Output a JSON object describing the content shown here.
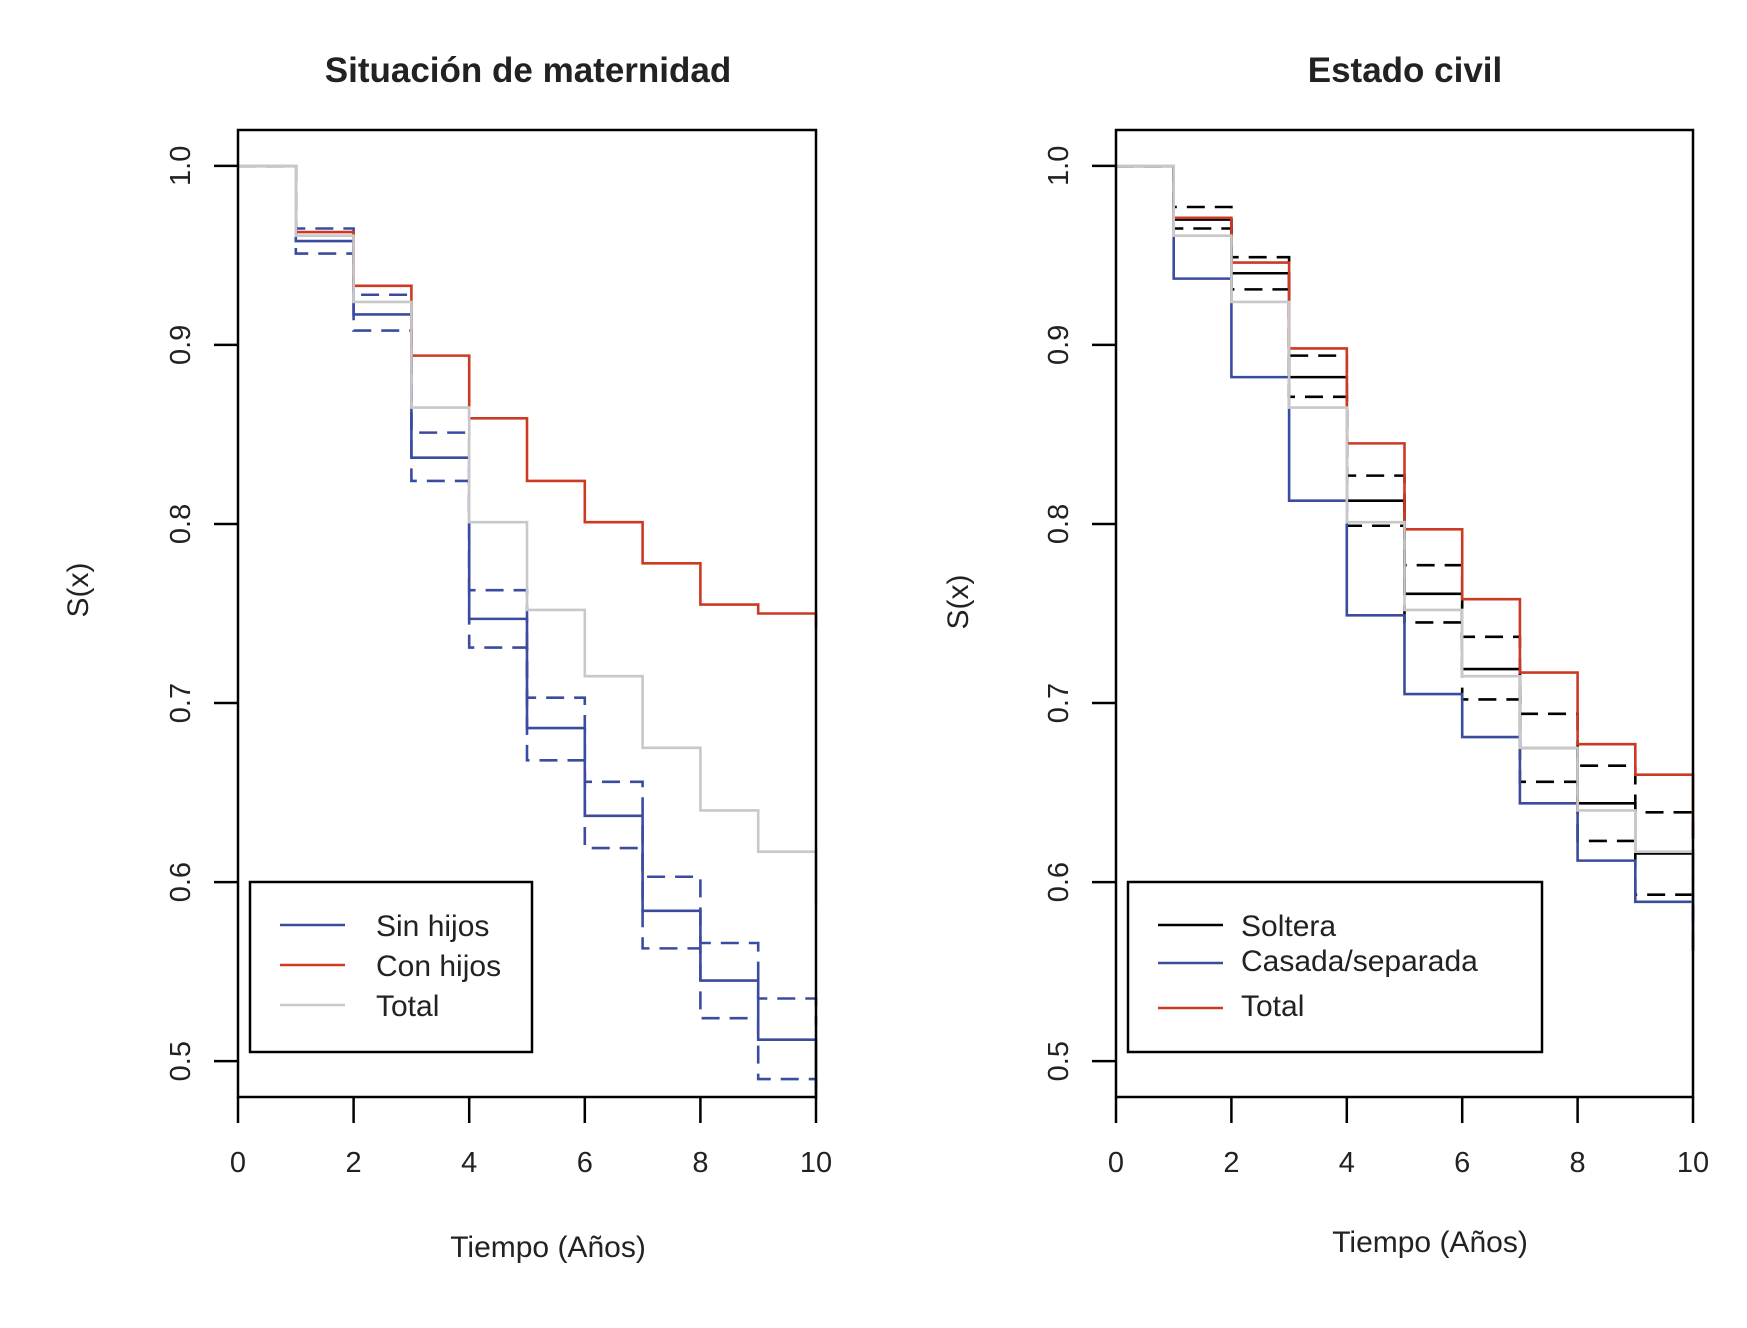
{
  "chart_data": [
    {
      "type": "line",
      "step": true,
      "title": "Situación de maternidad",
      "xlabel": "Tiempo (Años)",
      "ylabel": "S(x)",
      "xlim": [
        0,
        10
      ],
      "ylim": [
        0.48,
        1.02
      ],
      "xticks": [
        "0",
        "2",
        "4",
        "6",
        "8",
        "10"
      ],
      "yticks": [
        "0.5",
        "0.6",
        "0.7",
        "0.8",
        "0.9",
        "1.0"
      ],
      "grid": false,
      "legend_position": "bottom-left",
      "legend": [
        {
          "label": "Sin hijos",
          "color": "#3b4ba0"
        },
        {
          "label": "Con hijos",
          "color": "#cc3a23"
        },
        {
          "label": "Total",
          "color": "#c8c8c8"
        }
      ],
      "series": [
        {
          "legend_index": 0,
          "color": "#3b4ba0",
          "dashed": false,
          "x": [
            0,
            1,
            2,
            3,
            4,
            5,
            6,
            7,
            8,
            9,
            10
          ],
          "y": [
            1.0,
            0.958,
            0.917,
            0.837,
            0.747,
            0.686,
            0.637,
            0.584,
            0.545,
            0.512,
            0.48
          ]
        },
        {
          "legend_index": 0,
          "color": "#3b4ba0",
          "dashed": true,
          "x": [
            0,
            1,
            2,
            3,
            4,
            5,
            6,
            7,
            8,
            9,
            10
          ],
          "y": [
            1.0,
            0.965,
            0.928,
            0.851,
            0.763,
            0.703,
            0.656,
            0.603,
            0.566,
            0.535,
            0.52
          ]
        },
        {
          "legend_index": 0,
          "color": "#3b4ba0",
          "dashed": true,
          "x": [
            0,
            1,
            2,
            3,
            4,
            5,
            6,
            7,
            8,
            9,
            10
          ],
          "y": [
            1.0,
            0.951,
            0.908,
            0.824,
            0.731,
            0.668,
            0.619,
            0.563,
            0.524,
            0.49,
            0.48
          ]
        },
        {
          "legend_index": 1,
          "color": "#cc3a23",
          "dashed": false,
          "x": [
            0,
            1,
            2,
            3,
            4,
            5,
            6,
            7,
            8,
            9,
            10
          ],
          "y": [
            1.0,
            0.963,
            0.933,
            0.894,
            0.859,
            0.824,
            0.801,
            0.778,
            0.755,
            0.75,
            0.742
          ]
        },
        {
          "legend_index": 2,
          "color": "#c8c8c8",
          "dashed": false,
          "x": [
            0,
            1,
            2,
            3,
            4,
            5,
            6,
            7,
            8,
            9,
            10
          ],
          "y": [
            1.0,
            0.961,
            0.924,
            0.865,
            0.801,
            0.752,
            0.715,
            0.675,
            0.64,
            0.617,
            0.587
          ]
        }
      ]
    },
    {
      "type": "line",
      "step": true,
      "title": "Estado civil",
      "xlabel": "Tiempo (Años)",
      "ylabel": "S(x)",
      "xlim": [
        0,
        10
      ],
      "ylim": [
        0.48,
        1.02
      ],
      "xticks": [
        "0",
        "2",
        "4",
        "6",
        "8",
        "10"
      ],
      "yticks": [
        "0.5",
        "0.6",
        "0.7",
        "0.8",
        "0.9",
        "1.0"
      ],
      "grid": false,
      "legend_position": "bottom-left",
      "legend": [
        {
          "label": "Soltera",
          "color": "#000000"
        },
        {
          "label": "Casada/separada",
          "color": "#3b4ba0"
        },
        {
          "label": "Total",
          "color": "#cc3a23"
        }
      ],
      "series": [
        {
          "legend_index": 0,
          "color": "#000000",
          "dashed": false,
          "x": [
            0,
            1,
            2,
            3,
            4,
            5,
            6,
            7,
            8,
            9,
            10
          ],
          "y": [
            1.0,
            0.97,
            0.94,
            0.882,
            0.813,
            0.761,
            0.719,
            0.675,
            0.644,
            0.616,
            0.58
          ]
        },
        {
          "legend_index": 0,
          "color": "#000000",
          "dashed": true,
          "x": [
            0,
            1,
            2,
            3,
            4,
            5,
            6,
            7,
            8,
            9,
            10
          ],
          "y": [
            1.0,
            0.977,
            0.949,
            0.894,
            0.827,
            0.777,
            0.737,
            0.694,
            0.665,
            0.639,
            0.6
          ]
        },
        {
          "legend_index": 0,
          "color": "#000000",
          "dashed": true,
          "x": [
            0,
            1,
            2,
            3,
            4,
            5,
            6,
            7,
            8,
            9,
            10
          ],
          "y": [
            1.0,
            0.965,
            0.931,
            0.871,
            0.799,
            0.745,
            0.702,
            0.656,
            0.623,
            0.593,
            0.559
          ]
        },
        {
          "legend_index": 1,
          "color": "#3b4ba0",
          "dashed": false,
          "x": [
            0,
            1,
            2,
            3,
            4,
            5,
            6,
            7,
            8,
            9,
            10
          ],
          "y": [
            1.0,
            0.937,
            0.882,
            0.813,
            0.749,
            0.705,
            0.681,
            0.644,
            0.612,
            0.589,
            0.57
          ]
        },
        {
          "legend_index": 2,
          "color": "#cc3a23",
          "dashed": false,
          "x": [
            0,
            1,
            2,
            3,
            4,
            5,
            6,
            7,
            8,
            9,
            10
          ],
          "y": [
            1.0,
            0.971,
            0.946,
            0.898,
            0.845,
            0.797,
            0.758,
            0.717,
            0.677,
            0.66,
            0.629
          ]
        },
        {
          "legend_index": 2,
          "color": "#c8c8c8",
          "dashed": false,
          "x": [
            0,
            1,
            2,
            3,
            4,
            5,
            6,
            7,
            8,
            9,
            10
          ],
          "y": [
            1.0,
            0.961,
            0.924,
            0.865,
            0.801,
            0.752,
            0.715,
            0.675,
            0.64,
            0.617,
            0.587
          ]
        }
      ]
    }
  ]
}
